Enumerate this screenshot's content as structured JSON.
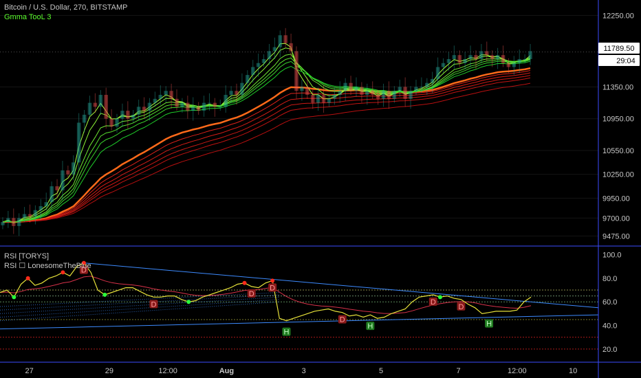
{
  "legend": {
    "symbol_line": "Bitcoin / U.S. Dollar, 270, BITSTAMP",
    "indicator_line": "Gmma TooL 3",
    "rsi_line_1": "RSI [TORYS]",
    "rsi_line_2": "RSI ☐ LonesomeTheBlue"
  },
  "price_badges": {
    "last_price": "11789.50",
    "countdown": "29:04"
  },
  "colors": {
    "background": "#000000",
    "up_candle": "#26a69a",
    "down_candle": "#ef5350",
    "gmma_short": "#5cff2e",
    "gmma_long": "#e8261c",
    "rsi_line": "#e8e33a",
    "rsi_ma": "#d8324a",
    "trendline": "#3d8bff",
    "pane_divider": "#3b4cff"
  },
  "chart_data": [
    {
      "type": "candlestick",
      "title": "Bitcoin / U.S. Dollar, 270, BITSTAMP",
      "ylim": [
        9400,
        12400
      ],
      "y_ticks": [
        12250,
        11350,
        10950,
        10550,
        10250,
        9950,
        9700,
        9475
      ],
      "y_tick_labels": [
        "12250.00",
        "11350.00",
        "10950.00",
        "10550.00",
        "10250.00",
        "9950.00",
        "9700.00",
        "9475.00"
      ],
      "x_tick_labels": [
        "27",
        "29",
        "12:00",
        "Aug",
        "3",
        "5",
        "7",
        "12:00",
        "10"
      ],
      "ohlc_close": [
        9650,
        9700,
        9600,
        9700,
        9750,
        9720,
        9800,
        9850,
        9900,
        10100,
        10050,
        10300,
        10250,
        10400,
        10900,
        11000,
        11150,
        11100,
        11250,
        10950,
        10850,
        10950,
        11050,
        10950,
        11000,
        11100,
        11050,
        11150,
        11200,
        11250,
        11300,
        11200,
        11100,
        11150,
        11050,
        11100,
        11050,
        11150,
        11150,
        11100,
        11100,
        11250,
        11300,
        11250,
        11400,
        11500,
        11600,
        11650,
        11700,
        11800,
        11850,
        12000,
        11900,
        11800,
        11300,
        11350,
        11250,
        11150,
        11250,
        11150,
        11200,
        11250,
        11300,
        11400,
        11300,
        11350,
        11250,
        11300,
        11250,
        11200,
        11300,
        11200,
        11300,
        11350,
        11200,
        11300,
        11350,
        11350,
        11400,
        11450,
        11600,
        11650,
        11700,
        11750,
        11650,
        11700,
        11750,
        11700,
        11800,
        11750,
        11700,
        11750,
        11650,
        11600,
        11650,
        11700,
        11700,
        11800
      ],
      "gmma_short_periods": [
        3,
        5,
        8,
        10,
        12,
        15
      ],
      "gmma_long_periods": [
        30,
        35,
        40,
        45,
        50,
        60
      ],
      "legend": [
        "Gmma TooL 3"
      ],
      "last_price": 11789.5
    },
    {
      "type": "line",
      "title": "RSI [TORYS]",
      "ylim": [
        10,
        105
      ],
      "y_ticks": [
        100,
        80,
        60,
        40,
        20
      ],
      "y_tick_labels": [
        "100.0",
        "80.0",
        "60.0",
        "40.0",
        "20.0"
      ],
      "series": [
        {
          "name": "RSI",
          "values": [
            68,
            70,
            64,
            75,
            80,
            74,
            76,
            80,
            82,
            85,
            82,
            90,
            93,
            85,
            70,
            66,
            68,
            70,
            72,
            72,
            69,
            66,
            64,
            64,
            65,
            65,
            62,
            60,
            61,
            64,
            66,
            68,
            70,
            72,
            75,
            76,
            73,
            72,
            76,
            78,
            46,
            44,
            46,
            48,
            50,
            52,
            53,
            54,
            52,
            51,
            48,
            49,
            47,
            49,
            46,
            47,
            50,
            52,
            54,
            60,
            64,
            65,
            66,
            64,
            65,
            63,
            62,
            58,
            55,
            50,
            51,
            52,
            52,
            52,
            53,
            60,
            64
          ]
        }
      ],
      "levels": [
        70,
        65,
        60,
        45,
        30,
        20
      ],
      "markers": [
        {
          "label": "D",
          "index": 12
        },
        {
          "label": "D",
          "index": 22
        },
        {
          "label": "D",
          "index": 36
        },
        {
          "label": "D",
          "index": 39
        },
        {
          "label": "D",
          "index": 49
        },
        {
          "label": "D",
          "index": 62
        },
        {
          "label": "D",
          "index": 66
        },
        {
          "label": "H",
          "index": 41
        },
        {
          "label": "H",
          "index": 53
        },
        {
          "label": "H",
          "index": 70
        }
      ]
    }
  ]
}
